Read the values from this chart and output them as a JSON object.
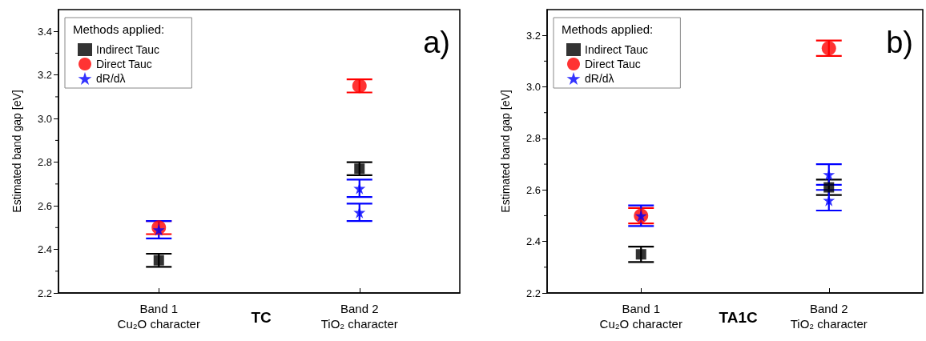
{
  "chart_data": [
    {
      "type": "scatter",
      "ylabel": "Estimated band gap [eV]",
      "legend_title": "Methods applied:",
      "annotations": [
        "a)",
        "TC"
      ],
      "categories": [
        "Band 1\nCu₂O character",
        "Band 2\nTiO₂ character"
      ],
      "ylim": [
        2.2,
        3.5
      ],
      "yticks": [
        2.2,
        2.4,
        2.6,
        2.8,
        {
          "value": 3,
          "label": "3.0"
        },
        3.2,
        3.4
      ],
      "grid": false,
      "legend": "top left",
      "series": [
        {
          "name": "Indirect Tauc",
          "color": "#000000",
          "marker": "square",
          "x": [
            "Band 1\nCu₂O character",
            "Band 2\nTiO₂ character"
          ],
          "values": [
            2.35,
            2.77
          ],
          "errors": [
            0.03,
            0.03
          ]
        },
        {
          "name": "Direct Tauc",
          "color": "#ff0000",
          "marker": "circle",
          "x": [
            "Band 1\nCu₂O character",
            "Band 2\nTiO₂ character"
          ],
          "values": [
            2.5,
            3.15
          ],
          "errors": [
            0.03,
            0.03
          ]
        },
        {
          "name": "dR/dλ",
          "color": "#0000ff",
          "marker": "star",
          "x": [
            "Band 1\nCu₂O character",
            "Band 2\nTiO₂ character",
            "Band 2\nTiO₂ character"
          ],
          "values": [
            2.49,
            2.68,
            2.57
          ],
          "errors": [
            0.04,
            0.04,
            0.04
          ]
        }
      ]
    },
    {
      "type": "scatter",
      "ylabel": "Estimated band gap [eV]",
      "legend_title": "Methods applied:",
      "annotations": [
        "b)",
        "TA1C"
      ],
      "categories": [
        "Band 1\nCu₂O character",
        "Band 2\nTiO₂ character"
      ],
      "ylim": [
        2.2,
        3.3
      ],
      "yticks": [
        2.2,
        2.4,
        2.6,
        2.8,
        {
          "value": 3,
          "label": "3.0"
        },
        3.2
      ],
      "grid": false,
      "legend": "top left",
      "series": [
        {
          "name": "Indirect Tauc",
          "color": "#000000",
          "marker": "square",
          "x": [
            "Band 1\nCu₂O character",
            "Band 2\nTiO₂ character"
          ],
          "values": [
            2.35,
            2.61
          ],
          "errors": [
            0.03,
            0.03
          ]
        },
        {
          "name": "Direct Tauc",
          "color": "#ff0000",
          "marker": "circle",
          "x": [
            "Band 1\nCu₂O character",
            "Band 2\nTiO₂ character"
          ],
          "values": [
            2.5,
            3.15
          ],
          "errors": [
            0.03,
            0.03
          ]
        },
        {
          "name": "dR/dλ",
          "color": "#0000ff",
          "marker": "star",
          "x": [
            "Band 1\nCu₂O character",
            "Band 2\nTiO₂ character",
            "Band 2\nTiO₂ character"
          ],
          "values": [
            2.5,
            2.66,
            2.56
          ],
          "errors": [
            0.04,
            0.04,
            0.04
          ]
        }
      ]
    }
  ]
}
